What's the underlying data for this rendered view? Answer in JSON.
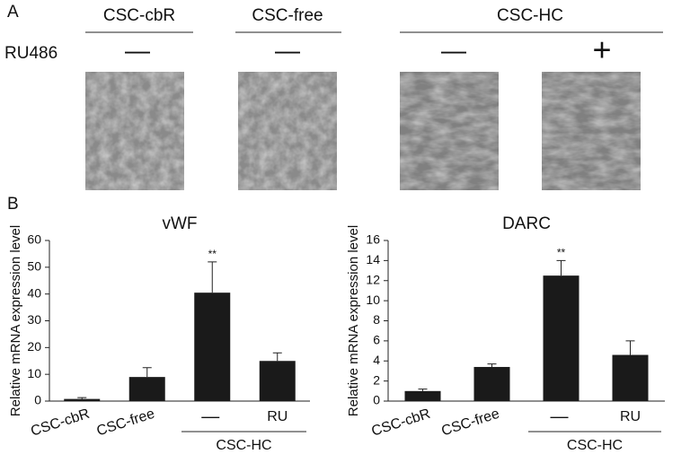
{
  "panel_a": {
    "label": "A",
    "groups": [
      "CSC-cbR",
      "CSC-free",
      "CSC-HC"
    ],
    "treatment_label": "RU486",
    "treatments": [
      "—",
      "—",
      "—",
      "+"
    ]
  },
  "panel_b": {
    "label": "B"
  },
  "chart_data": [
    {
      "type": "bar",
      "title": "vWF",
      "ylabel": "Relative mRNA expression level",
      "categories": [
        "CSC-cbR",
        "CSC-free",
        "—",
        "RU"
      ],
      "group_label": "CSC-HC",
      "values": [
        0.8,
        9,
        40.5,
        15
      ],
      "errors": [
        0.5,
        3.5,
        11.5,
        3
      ],
      "significance": [
        null,
        null,
        "**",
        null
      ],
      "color": "#1a1a1a",
      "ylim": [
        0,
        60
      ],
      "yticks": [
        0,
        10,
        20,
        30,
        40,
        50,
        60
      ]
    },
    {
      "type": "bar",
      "title": "DARC",
      "ylabel": "Relative mRNA expression level",
      "categories": [
        "CSC-cbR",
        "CSC-free",
        "—",
        "RU"
      ],
      "group_label": "CSC-HC",
      "values": [
        1,
        3.4,
        12.5,
        4.6
      ],
      "errors": [
        0.2,
        0.3,
        1.5,
        1.4
      ],
      "significance": [
        null,
        null,
        "**",
        null
      ],
      "color": "#1a1a1a",
      "ylim": [
        0,
        16
      ],
      "yticks": [
        0,
        2,
        4,
        6,
        8,
        10,
        12,
        14,
        16
      ]
    }
  ]
}
